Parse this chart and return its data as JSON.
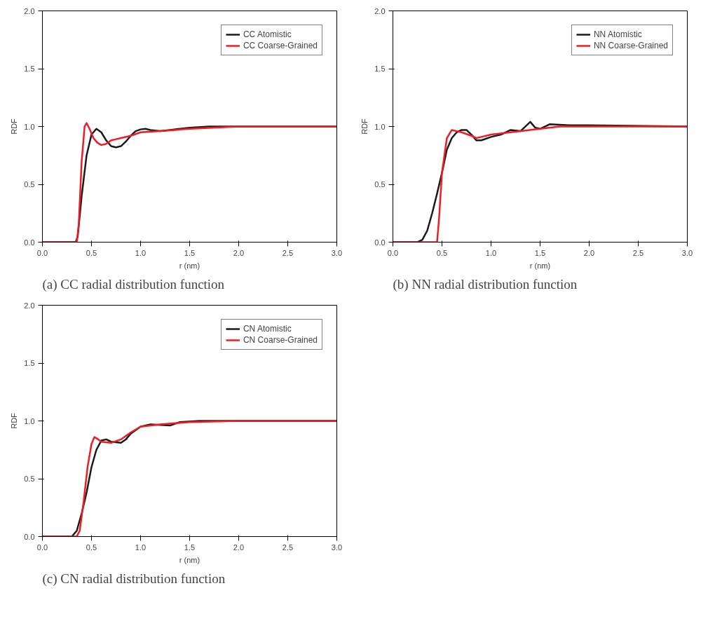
{
  "chart_data": [
    {
      "type": "line",
      "title": "(a) CC radial distribution function",
      "xlabel": "r (nm)",
      "ylabel": "RDF",
      "xlim": [
        0,
        3
      ],
      "ylim": [
        0,
        2
      ],
      "xticks": [
        {
          "value": 0,
          "label": "0.0"
        },
        {
          "value": 0.5,
          "label": "0.5"
        },
        {
          "value": 1,
          "label": "1.0"
        },
        {
          "value": 1.5,
          "label": "1.5"
        },
        {
          "value": 2,
          "label": "2.0"
        },
        {
          "value": 2.5,
          "label": "2.5"
        },
        {
          "value": 3,
          "label": "3.0"
        }
      ],
      "yticks": [
        {
          "value": 0,
          "label": "0.0"
        },
        {
          "value": 0.5,
          "label": "0.5"
        },
        {
          "value": 1,
          "label": "1.0"
        },
        {
          "value": 1.5,
          "label": "1.5"
        },
        {
          "value": 2,
          "label": "2.0"
        }
      ],
      "legend": "top right",
      "grid": false,
      "series": [
        {
          "name": "CC Atomistic",
          "color": "#1a1a1a",
          "x": [
            0,
            0.34,
            0.36,
            0.4,
            0.45,
            0.5,
            0.55,
            0.6,
            0.65,
            0.7,
            0.75,
            0.8,
            0.85,
            0.9,
            0.95,
            1.0,
            1.05,
            1.1,
            1.2,
            1.3,
            1.5,
            1.7,
            2.0,
            2.5,
            3.0
          ],
          "values": [
            0,
            0,
            0.05,
            0.4,
            0.75,
            0.93,
            0.98,
            0.95,
            0.88,
            0.83,
            0.82,
            0.83,
            0.87,
            0.92,
            0.96,
            0.975,
            0.98,
            0.97,
            0.96,
            0.97,
            0.99,
            1.0,
            1.0,
            1.0,
            1.0
          ]
        },
        {
          "name": "CC Coarse-Grained",
          "color": "#ee1c25",
          "x": [
            0,
            0.35,
            0.37,
            0.4,
            0.43,
            0.45,
            0.48,
            0.52,
            0.56,
            0.6,
            0.65,
            0.7,
            0.75,
            0.8,
            0.9,
            1.0,
            1.2,
            1.5,
            2.0,
            3.0
          ],
          "values": [
            0,
            0,
            0.15,
            0.7,
            1.0,
            1.03,
            0.98,
            0.9,
            0.86,
            0.84,
            0.85,
            0.88,
            0.89,
            0.9,
            0.92,
            0.95,
            0.96,
            0.98,
            1.0,
            1.0
          ]
        }
      ]
    },
    {
      "type": "line",
      "title": "(b) NN radial distribution function",
      "xlabel": "r (nm)",
      "ylabel": "RDF",
      "xlim": [
        0,
        3
      ],
      "ylim": [
        0,
        2
      ],
      "xticks": [
        {
          "value": 0,
          "label": "0.0"
        },
        {
          "value": 0.5,
          "label": "0.5"
        },
        {
          "value": 1,
          "label": "1.0"
        },
        {
          "value": 1.5,
          "label": "1.5"
        },
        {
          "value": 2,
          "label": "2.0"
        },
        {
          "value": 2.5,
          "label": "2.5"
        },
        {
          "value": 3,
          "label": "3.0"
        }
      ],
      "yticks": [
        {
          "value": 0,
          "label": "0.0"
        },
        {
          "value": 0.5,
          "label": "0.5"
        },
        {
          "value": 1,
          "label": "1.0"
        },
        {
          "value": 1.5,
          "label": "1.5"
        },
        {
          "value": 2,
          "label": "2.0"
        }
      ],
      "legend": "top right",
      "grid": false,
      "series": [
        {
          "name": "NN Atomistic",
          "color": "#1a1a1a",
          "x": [
            0,
            0.25,
            0.3,
            0.35,
            0.4,
            0.45,
            0.5,
            0.55,
            0.6,
            0.65,
            0.7,
            0.75,
            0.8,
            0.85,
            0.9,
            1.0,
            1.1,
            1.2,
            1.3,
            1.4,
            1.45,
            1.5,
            1.6,
            1.8,
            2.0,
            3.0
          ],
          "values": [
            0,
            0,
            0.02,
            0.1,
            0.25,
            0.42,
            0.6,
            0.8,
            0.9,
            0.95,
            0.97,
            0.97,
            0.93,
            0.88,
            0.88,
            0.91,
            0.93,
            0.97,
            0.96,
            1.04,
            0.99,
            0.98,
            1.02,
            1.01,
            1.01,
            1.0
          ]
        },
        {
          "name": "NN Coarse-Grained",
          "color": "#ee1c25",
          "x": [
            0,
            0.45,
            0.47,
            0.5,
            0.55,
            0.6,
            0.65,
            0.7,
            0.8,
            0.85,
            0.9,
            1.0,
            1.2,
            1.5,
            1.7,
            2.0,
            3.0
          ],
          "values": [
            0,
            0,
            0.2,
            0.6,
            0.9,
            0.97,
            0.96,
            0.95,
            0.92,
            0.9,
            0.91,
            0.93,
            0.95,
            0.98,
            1.0,
            1.0,
            1.0
          ]
        }
      ]
    },
    {
      "type": "line",
      "title": "(c) CN radial distribution function",
      "xlabel": "r (nm)",
      "ylabel": "RDF",
      "xlim": [
        0,
        3
      ],
      "ylim": [
        0,
        2
      ],
      "xticks": [
        {
          "value": 0,
          "label": "0.0"
        },
        {
          "value": 0.5,
          "label": "0.5"
        },
        {
          "value": 1,
          "label": "1.0"
        },
        {
          "value": 1.5,
          "label": "1.5"
        },
        {
          "value": 2,
          "label": "2.0"
        },
        {
          "value": 2.5,
          "label": "2.5"
        },
        {
          "value": 3,
          "label": "3.0"
        }
      ],
      "yticks": [
        {
          "value": 0,
          "label": "0.0"
        },
        {
          "value": 0.5,
          "label": "0.5"
        },
        {
          "value": 1,
          "label": "1.0"
        },
        {
          "value": 1.5,
          "label": "1.5"
        },
        {
          "value": 2,
          "label": "2.0"
        }
      ],
      "legend": "top right",
      "grid": false,
      "series": [
        {
          "name": "CN Atomistic",
          "color": "#1a1a1a",
          "x": [
            0,
            0.3,
            0.35,
            0.4,
            0.45,
            0.5,
            0.55,
            0.6,
            0.65,
            0.7,
            0.8,
            0.85,
            0.9,
            1.0,
            1.1,
            1.3,
            1.4,
            1.6,
            2.0,
            3.0
          ],
          "values": [
            0,
            0,
            0.05,
            0.2,
            0.38,
            0.6,
            0.75,
            0.83,
            0.84,
            0.82,
            0.81,
            0.84,
            0.89,
            0.95,
            0.97,
            0.96,
            0.99,
            1.0,
            1.0,
            1.0
          ]
        },
        {
          "name": "CN Coarse-Grained",
          "color": "#ee1c25",
          "x": [
            0,
            0.35,
            0.38,
            0.42,
            0.46,
            0.5,
            0.53,
            0.57,
            0.6,
            0.7,
            0.8,
            0.9,
            1.0,
            1.2,
            1.5,
            2.0,
            3.0
          ],
          "values": [
            0,
            0,
            0.05,
            0.3,
            0.6,
            0.8,
            0.86,
            0.84,
            0.82,
            0.81,
            0.84,
            0.9,
            0.95,
            0.97,
            0.99,
            1.0,
            1.0
          ]
        }
      ]
    }
  ]
}
